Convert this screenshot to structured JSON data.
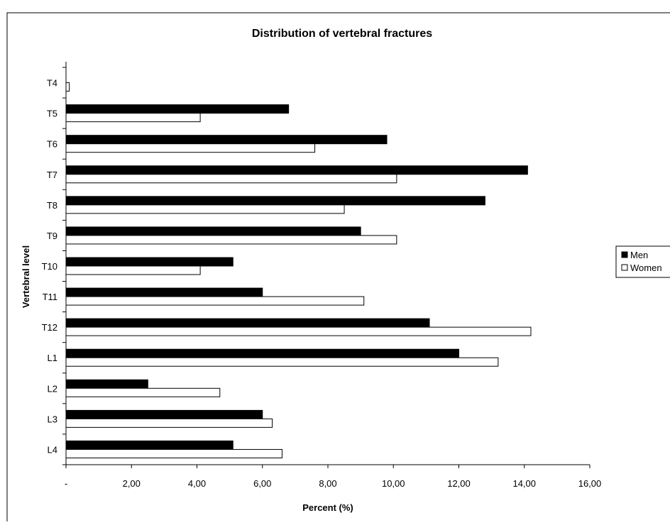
{
  "chart_data": {
    "type": "bar",
    "orientation": "horizontal",
    "title": "Distribution of vertebral fractures",
    "xlabel": "Percent (%)",
    "ylabel": "Vertebral level",
    "categories": [
      "T4",
      "T5",
      "T6",
      "T7",
      "T8",
      "T9",
      "T10",
      "T11",
      "T12",
      "L1",
      "L2",
      "L3",
      "L4"
    ],
    "series": [
      {
        "name": "Men",
        "color": "#000000",
        "values": [
          0,
          6.8,
          9.8,
          14.1,
          12.8,
          9.0,
          5.1,
          6.0,
          11.1,
          12.0,
          2.5,
          6.0,
          5.1
        ]
      },
      {
        "name": "Women",
        "color": "#ffffff",
        "values": [
          0.1,
          4.1,
          7.6,
          10.1,
          8.5,
          10.1,
          4.1,
          9.1,
          14.2,
          13.2,
          4.7,
          6.3,
          6.6
        ]
      }
    ],
    "xlim": [
      0,
      16
    ],
    "xticks": [
      0,
      2,
      4,
      6,
      8,
      10,
      12,
      14,
      16
    ],
    "xtick_labels": [
      "-",
      "2,00",
      "4,00",
      "6,00",
      "8,00",
      "10,00",
      "12,00",
      "14,00",
      "16,00"
    ],
    "grid": false,
    "legend": {
      "position": "right",
      "entries": [
        "Men",
        "Women"
      ]
    }
  }
}
